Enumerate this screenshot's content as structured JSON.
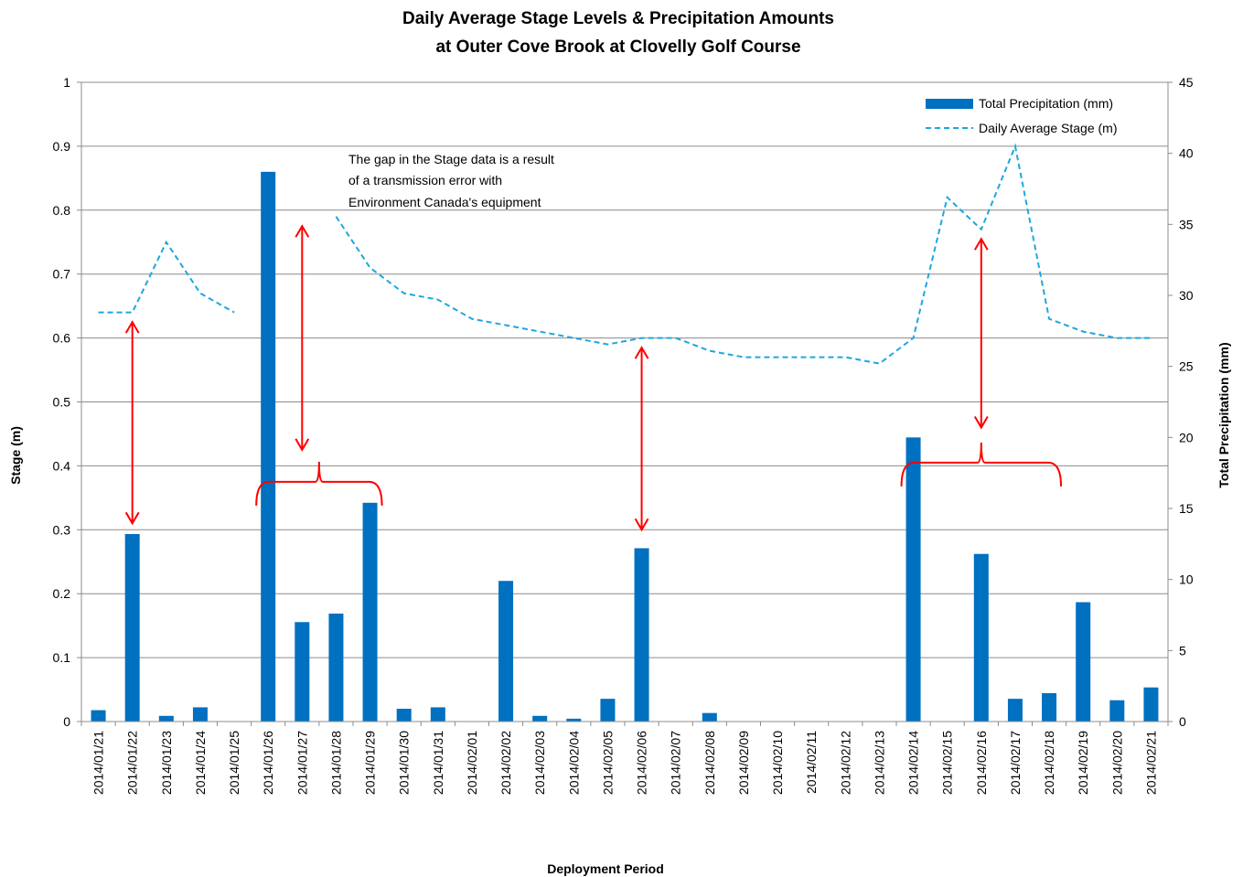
{
  "chart_data": {
    "type": "bar",
    "title_line1": "Daily Average Stage Levels & Precipitation Amounts",
    "title_line2": "at Outer Cove Brook at Clovelly Golf Course",
    "xlabel": "Deployment Period",
    "ylabel_left": "Stage (m)",
    "ylabel_right": "Total Precipitation  (mm)",
    "ylim_left": [
      0,
      1
    ],
    "yticks_left": [
      "0",
      "0.1",
      "0.2",
      "0.3",
      "0.4",
      "0.5",
      "0.6",
      "0.7",
      "0.8",
      "0.9",
      "1"
    ],
    "ylim_right": [
      0,
      45
    ],
    "yticks_right": [
      "0",
      "5",
      "10",
      "15",
      "20",
      "25",
      "30",
      "35",
      "40",
      "45"
    ],
    "grid": true,
    "legend_position": "top-right",
    "categories": [
      "2014/01/21",
      "2014/01/22",
      "2014/01/23",
      "2014/01/24",
      "2014/01/25",
      "2014/01/26",
      "2014/01/27",
      "2014/01/28",
      "2014/01/29",
      "2014/01/30",
      "2014/01/31",
      "2014/02/01",
      "2014/02/02",
      "2014/02/03",
      "2014/02/04",
      "2014/02/05",
      "2014/02/06",
      "2014/02/07",
      "2014/02/08",
      "2014/02/09",
      "2014/02/10",
      "2014/02/11",
      "2014/02/12",
      "2014/02/13",
      "2014/02/14",
      "2014/02/15",
      "2014/02/16",
      "2014/02/17",
      "2014/02/18",
      "2014/02/19",
      "2014/02/20",
      "2014/02/21"
    ],
    "series": [
      {
        "name": "Total Precipitation (mm)",
        "type": "bar",
        "axis": "right",
        "color": "#0070C0",
        "values": [
          0.8,
          13.2,
          0.4,
          1.0,
          0,
          38.7,
          7.0,
          7.6,
          15.4,
          0.9,
          1.0,
          0,
          9.9,
          0.4,
          0.2,
          1.6,
          12.2,
          0,
          0.6,
          0,
          0,
          0,
          0,
          0,
          20.0,
          0,
          11.8,
          1.6,
          2.0,
          8.4,
          1.5,
          2.4
        ]
      },
      {
        "name": "Daily Average Stage (m)",
        "type": "line",
        "axis": "left",
        "style": "dashed",
        "color": "#1FA6E0",
        "values": [
          0.64,
          0.64,
          0.75,
          0.67,
          0.64,
          null,
          null,
          0.79,
          0.71,
          0.67,
          0.66,
          0.63,
          0.62,
          0.61,
          0.6,
          0.59,
          0.6,
          0.6,
          0.58,
          0.57,
          0.57,
          0.57,
          0.57,
          0.56,
          0.6,
          0.82,
          0.77,
          0.9,
          0.63,
          0.61,
          0.6,
          0.6
        ]
      }
    ],
    "annotations": [
      {
        "text_lines": [
          "The gap in the Stage data is a result",
          "of a transmission error with",
          "Environment Canada's equipment"
        ]
      }
    ],
    "markers": {
      "color": "#FF0000",
      "arrows": [
        {
          "at": "2014/01/22",
          "from_stage": 0.625,
          "to_stage": 0.31
        },
        {
          "at": "2014/01/27",
          "from_stage": 0.775,
          "to_stage": 0.425
        },
        {
          "at": "2014/02/06",
          "from_stage": 0.585,
          "to_stage": 0.3
        },
        {
          "at": "2014/02/16",
          "from_stage": 0.755,
          "to_stage": 0.46
        }
      ],
      "brackets": [
        {
          "from": "2014/01/26",
          "to": "2014/01/29",
          "stage": 0.375
        },
        {
          "from": "2014/02/14",
          "to": "2014/02/18",
          "stage": 0.405
        }
      ]
    }
  }
}
